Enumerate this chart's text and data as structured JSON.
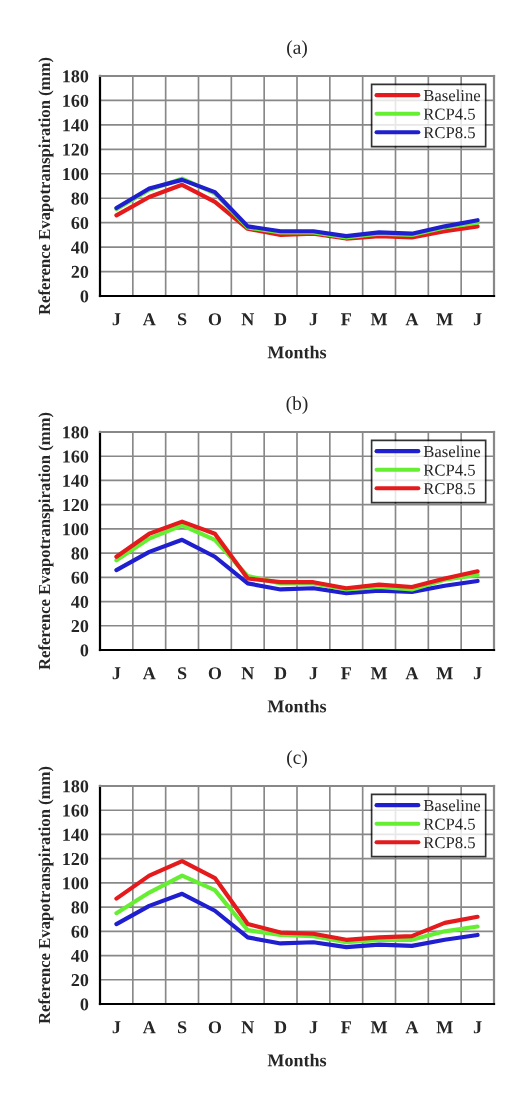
{
  "chart_data": [
    {
      "type": "line",
      "title": "(a)",
      "xlabel": "Months",
      "ylabel": "Reference Evapotranspiration (mm)",
      "categories": [
        "J",
        "A",
        "S",
        "O",
        "N",
        "D",
        "J",
        "F",
        "M",
        "A",
        "M",
        "J"
      ],
      "ylim": [
        0,
        180
      ],
      "yticks": [
        0,
        20,
        40,
        60,
        80,
        100,
        120,
        140,
        160,
        180
      ],
      "grid": true,
      "legend": "top right",
      "series": [
        {
          "name": "Baseline",
          "color": "#e41a1c",
          "values": [
            66,
            81,
            91,
            77,
            55,
            50,
            51,
            47,
            49,
            48,
            53,
            57
          ]
        },
        {
          "name": "RCP4.5",
          "color": "#66ee33",
          "values": [
            71,
            87,
            96,
            84,
            56,
            52,
            52,
            48,
            51,
            50,
            56,
            60
          ]
        },
        {
          "name": "RCP8.5",
          "color": "#1f1fd0",
          "values": [
            72,
            88,
            95,
            85,
            57,
            53,
            53,
            49,
            52,
            51,
            57,
            62
          ]
        }
      ]
    },
    {
      "type": "line",
      "title": "(b)",
      "xlabel": "Months",
      "ylabel": "Reference Evapotranspiration (mm)",
      "categories": [
        "J",
        "A",
        "S",
        "O",
        "N",
        "D",
        "J",
        "F",
        "M",
        "A",
        "M",
        "J"
      ],
      "ylim": [
        0,
        180
      ],
      "yticks": [
        0,
        20,
        40,
        60,
        80,
        100,
        120,
        140,
        160,
        180
      ],
      "grid": true,
      "legend": "top right",
      "series": [
        {
          "name": "Baseline",
          "color": "#1f1fd0",
          "values": [
            66,
            81,
            91,
            77,
            55,
            50,
            51,
            47,
            49,
            48,
            53,
            57
          ]
        },
        {
          "name": "RCP4.5",
          "color": "#66ee33",
          "values": [
            74,
            92,
            103,
            91,
            61,
            55,
            55,
            50,
            52,
            50,
            58,
            62
          ]
        },
        {
          "name": "RCP8.5",
          "color": "#e41a1c",
          "values": [
            77,
            96,
            106,
            96,
            59,
            56,
            56,
            51,
            54,
            52,
            59,
            65
          ]
        }
      ]
    },
    {
      "type": "line",
      "title": "(c)",
      "xlabel": "Months",
      "ylabel": "Reference Evapotranspiration (mm)",
      "categories": [
        "J",
        "A",
        "S",
        "O",
        "N",
        "D",
        "J",
        "F",
        "M",
        "A",
        "M",
        "J"
      ],
      "ylim": [
        0,
        180
      ],
      "yticks": [
        0,
        20,
        40,
        60,
        80,
        100,
        120,
        140,
        160,
        180
      ],
      "grid": true,
      "legend": "top right",
      "series": [
        {
          "name": "Baseline",
          "color": "#1f1fd0",
          "values": [
            66,
            81,
            91,
            77,
            55,
            50,
            51,
            47,
            49,
            48,
            53,
            57
          ]
        },
        {
          "name": "RCP4.5",
          "color": "#66ee33",
          "values": [
            75,
            92,
            106,
            94,
            61,
            57,
            56,
            51,
            53,
            53,
            60,
            64
          ]
        },
        {
          "name": "RCP8.5",
          "color": "#e41a1c",
          "values": [
            87,
            106,
            118,
            104,
            66,
            59,
            58,
            53,
            55,
            56,
            67,
            72
          ]
        }
      ]
    }
  ]
}
